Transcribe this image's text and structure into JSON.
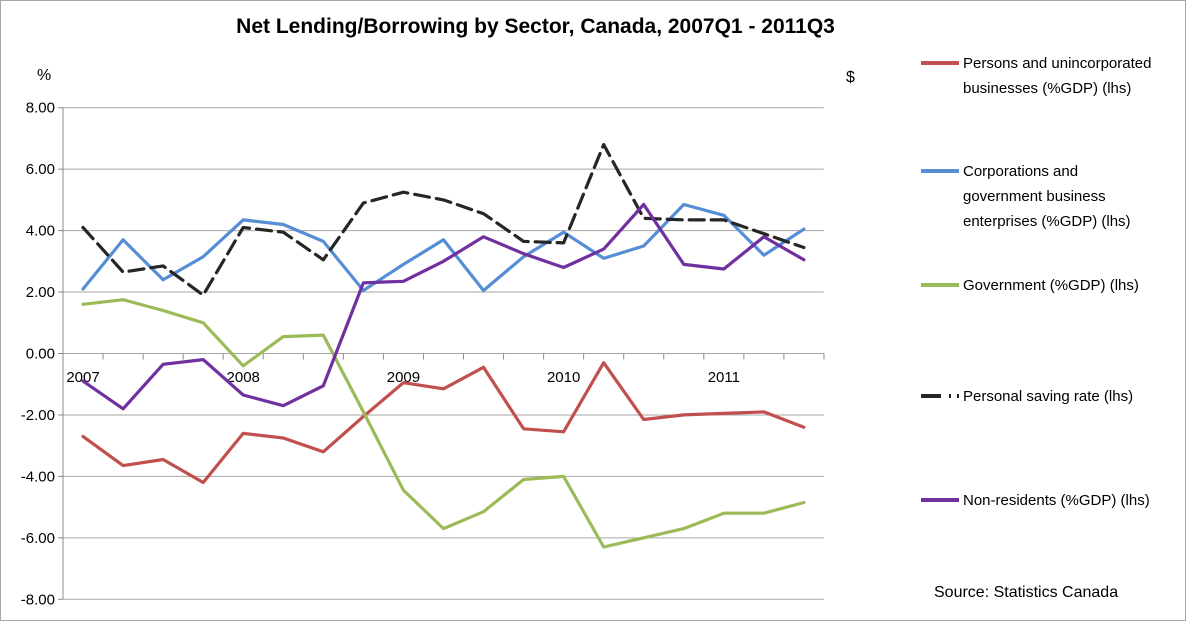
{
  "title": "Net Lending/Borrowing by Sector, Canada, 2007Q1 - 2011Q3",
  "left_axis_unit": "%",
  "right_axis_unit": "$",
  "source": "Source: Statistics Canada",
  "colors": {
    "grid": "#a6a6a6",
    "axis": "#8c8c8c",
    "title_text": "#000000"
  },
  "chart_data": {
    "type": "line",
    "title": "Net Lending/Borrowing by Sector, Canada, 2007Q1 - 2011Q3",
    "x_categories": [
      "2007Q1",
      "2007Q2",
      "2007Q3",
      "2007Q4",
      "2008Q1",
      "2008Q2",
      "2008Q3",
      "2008Q4",
      "2009Q1",
      "2009Q2",
      "2009Q3",
      "2009Q4",
      "2010Q1",
      "2010Q2",
      "2010Q3",
      "2010Q4",
      "2011Q1",
      "2011Q2",
      "2011Q3"
    ],
    "x_year_labels": [
      "2007",
      "2008",
      "2009",
      "2010",
      "2011"
    ],
    "ytick_labels": [
      "8.00",
      "6.00",
      "4.00",
      "2.00",
      "0.00",
      "-2.00",
      "-4.00",
      "-6.00",
      "-8.00"
    ],
    "ylim": [
      -8,
      8
    ],
    "grid": true,
    "legend_position": "right",
    "series": [
      {
        "id": "persons",
        "name": "Persons and unincorporated businesses (%GDP) (lhs)",
        "color": "#c0504d",
        "dash": "solid",
        "values": [
          -2.7,
          -3.65,
          -3.45,
          -4.2,
          -2.6,
          -2.75,
          -3.2,
          -2.05,
          -0.95,
          -1.15,
          -0.45,
          -2.45,
          -2.55,
          -0.3,
          -2.15,
          -2.0,
          -1.95,
          -1.9,
          -2.4
        ]
      },
      {
        "id": "corporations",
        "name": "Corporations and government business enterprises (%GDP) (lhs)",
        "color": "#558ed5",
        "dash": "solid",
        "values": [
          2.1,
          3.7,
          2.4,
          3.15,
          4.35,
          4.2,
          3.65,
          2.05,
          2.9,
          3.7,
          2.05,
          3.15,
          3.95,
          3.1,
          3.5,
          4.85,
          4.5,
          3.2,
          4.05
        ]
      },
      {
        "id": "government",
        "name": "Government (%GDP) (lhs)",
        "color": "#9bbb59",
        "dash": "solid",
        "values": [
          1.6,
          1.75,
          1.4,
          1.0,
          -0.4,
          0.55,
          0.6,
          -1.9,
          -4.45,
          -5.7,
          -5.15,
          -4.1,
          -4.0,
          -6.3,
          -6.0,
          -5.7,
          -5.2,
          -5.2,
          -4.85
        ]
      },
      {
        "id": "saving-rate",
        "name": "Personal saving rate (lhs)",
        "color": "#262626",
        "dash": "dashed",
        "values": [
          4.1,
          2.65,
          2.85,
          1.9,
          4.1,
          3.95,
          3.05,
          4.9,
          5.25,
          5.0,
          4.55,
          3.65,
          3.6,
          6.8,
          4.4,
          4.35,
          4.35,
          3.9,
          3.45
        ]
      },
      {
        "id": "non-residents",
        "name": "Non-residents (%GDP) (lhs)",
        "color": "#7030a0",
        "dash": "solid",
        "values": [
          -0.9,
          -1.8,
          -0.35,
          -0.2,
          -1.35,
          -1.7,
          -1.05,
          2.3,
          2.35,
          3.0,
          3.8,
          3.25,
          2.8,
          3.4,
          4.85,
          2.9,
          2.75,
          3.8,
          3.05
        ]
      }
    ]
  }
}
